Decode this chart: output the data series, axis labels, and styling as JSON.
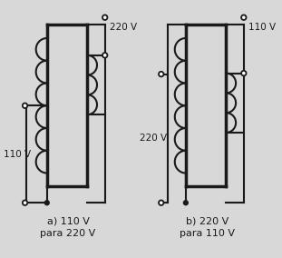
{
  "bg_color": "#d8d8d8",
  "line_color": "#1a1a1a",
  "text_color": "#1a1a1a",
  "label_a": "a) 110 V\npara 220 V",
  "label_b": "b) 220 V\npara 110 V",
  "volt_110_a": "110 V",
  "volt_220_a": "220 V",
  "volt_220_b": "220 V",
  "volt_110_b": "110 V",
  "fig_width": 3.11,
  "fig_height": 2.84,
  "dpi": 100
}
